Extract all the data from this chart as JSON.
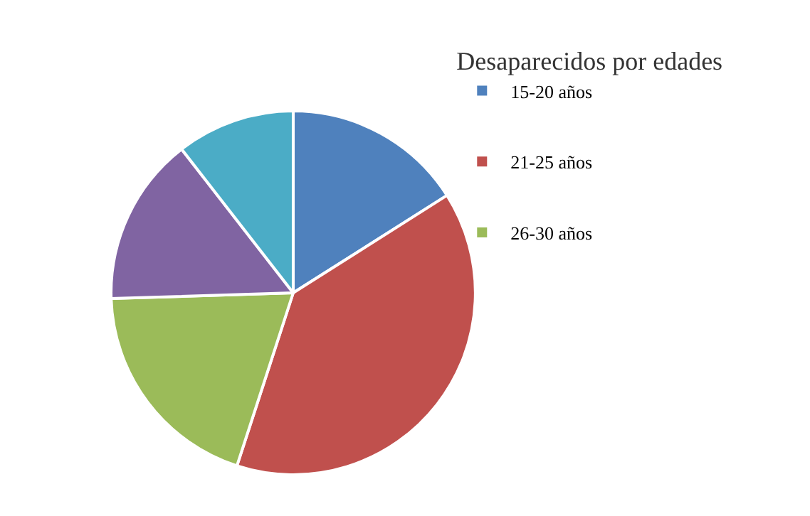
{
  "chart_data": {
    "type": "pie",
    "legend_title": "Desaparecidos por edades",
    "categories": [
      "15-20 años",
      "21-25 años",
      "26-30 años",
      null,
      null
    ],
    "values": [
      16,
      39,
      19.5,
      15,
      10.5
    ],
    "colors": [
      "#4f81bd",
      "#c0504d",
      "#9bbb59",
      "#8064a2",
      "#4bacc6"
    ],
    "legend": "top right"
  }
}
